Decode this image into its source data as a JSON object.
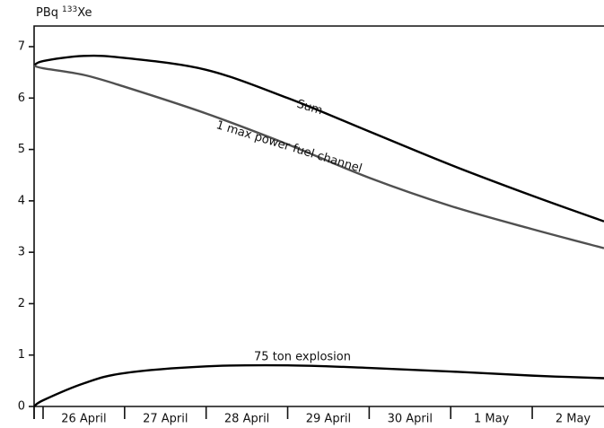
{
  "chart_data": {
    "type": "line",
    "ylabel": "PBq",
    "ylabel_mass_number": "133",
    "ylabel_element": "Xe",
    "categories": [
      "26 April",
      "27 April",
      "28 April",
      "29 April",
      "30 April",
      "1 May",
      "2 May"
    ],
    "x": [
      -0.11,
      0,
      0.5,
      1,
      2,
      3,
      4,
      5,
      6,
      6.88
    ],
    "xlim": [
      -0.11,
      6.88
    ],
    "ylim": [
      0,
      7
    ],
    "yticks": [
      0,
      1,
      2,
      3,
      4,
      5,
      6,
      7
    ],
    "series": [
      {
        "name": "Sum",
        "color": "#000000",
        "values": [
          6.63,
          6.72,
          6.82,
          6.78,
          6.55,
          6.0,
          5.35,
          4.7,
          4.1,
          3.6
        ]
      },
      {
        "name": "1 max power fuel channel",
        "color": "#505050",
        "values": [
          6.63,
          6.58,
          6.45,
          6.22,
          5.7,
          5.1,
          4.45,
          3.9,
          3.45,
          3.08
        ]
      },
      {
        "name": "75 ton explosion",
        "color": "#000000",
        "values": [
          0,
          0.12,
          0.45,
          0.65,
          0.78,
          0.8,
          0.75,
          0.68,
          0.6,
          0.55
        ]
      }
    ]
  }
}
